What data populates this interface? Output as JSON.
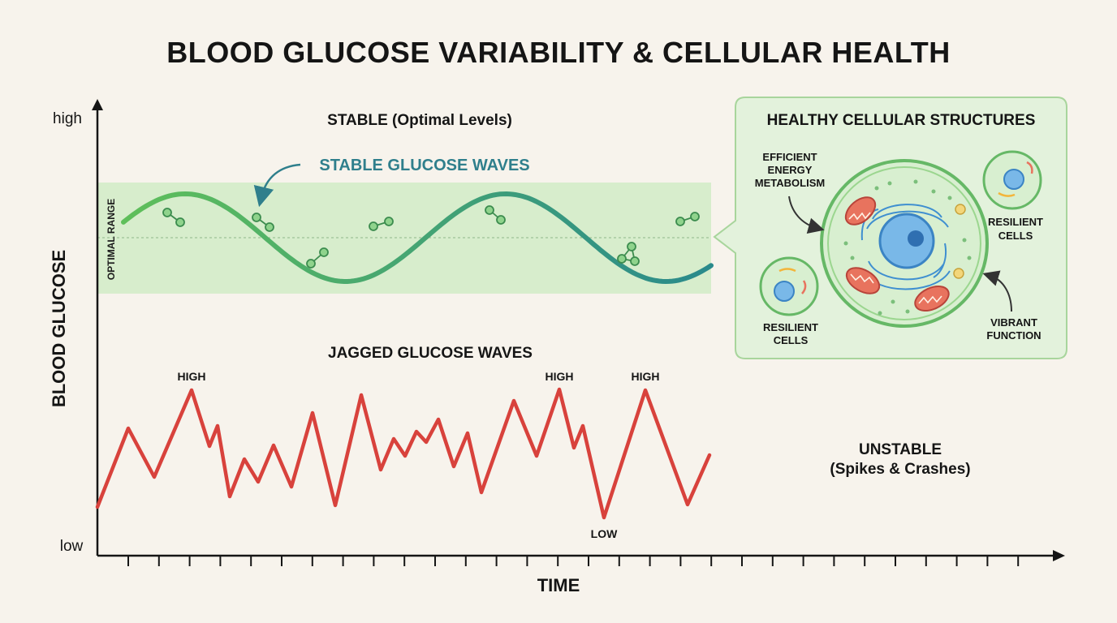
{
  "title": "BLOOD GLUCOSE VARIABILITY & CELLULAR HEALTH",
  "axes": {
    "y_label": "BLOOD GLUCOSE",
    "y_high": "high",
    "y_low": "low",
    "x_label": "TIME"
  },
  "stable": {
    "heading": "STABLE (Optimal Levels)",
    "wave_label": "STABLE GLUCOSE WAVES",
    "band_label": "OPTIMAL RANGE"
  },
  "unstable": {
    "heading": "JAGGED GLUCOSE WAVES",
    "status_line1": "UNSTABLE",
    "status_line2": "(Spikes & Crashes)",
    "peak_label_1": "HIGH",
    "peak_label_2": "HIGH",
    "peak_label_3": "HIGH",
    "trough_label": "LOW"
  },
  "cell_panel": {
    "title": "HEALTHY CELLULAR STRUCTURES",
    "efficient_line1": "EFFICIENT",
    "efficient_line2": "ENERGY",
    "efficient_line3": "METABOLISM",
    "resilient_top_line1": "RESILIENT",
    "resilient_top_line2": "CELLS",
    "resilient_bottom_line1": "RESILIENT",
    "resilient_bottom_line2": "CELLS",
    "vibrant_line1": "VIBRANT",
    "vibrant_line2": "FUNCTION"
  },
  "colors": {
    "band_fill": "#d3ecc9",
    "stable_wave_start": "#5fbf5a",
    "stable_wave_end": "#2a8a8c",
    "wave_label": "#2f7f8c",
    "jagged_wave": "#d8423c",
    "axis": "#151515",
    "panel_fill": "#e3f2dc",
    "panel_stroke": "#a8d59c"
  }
}
